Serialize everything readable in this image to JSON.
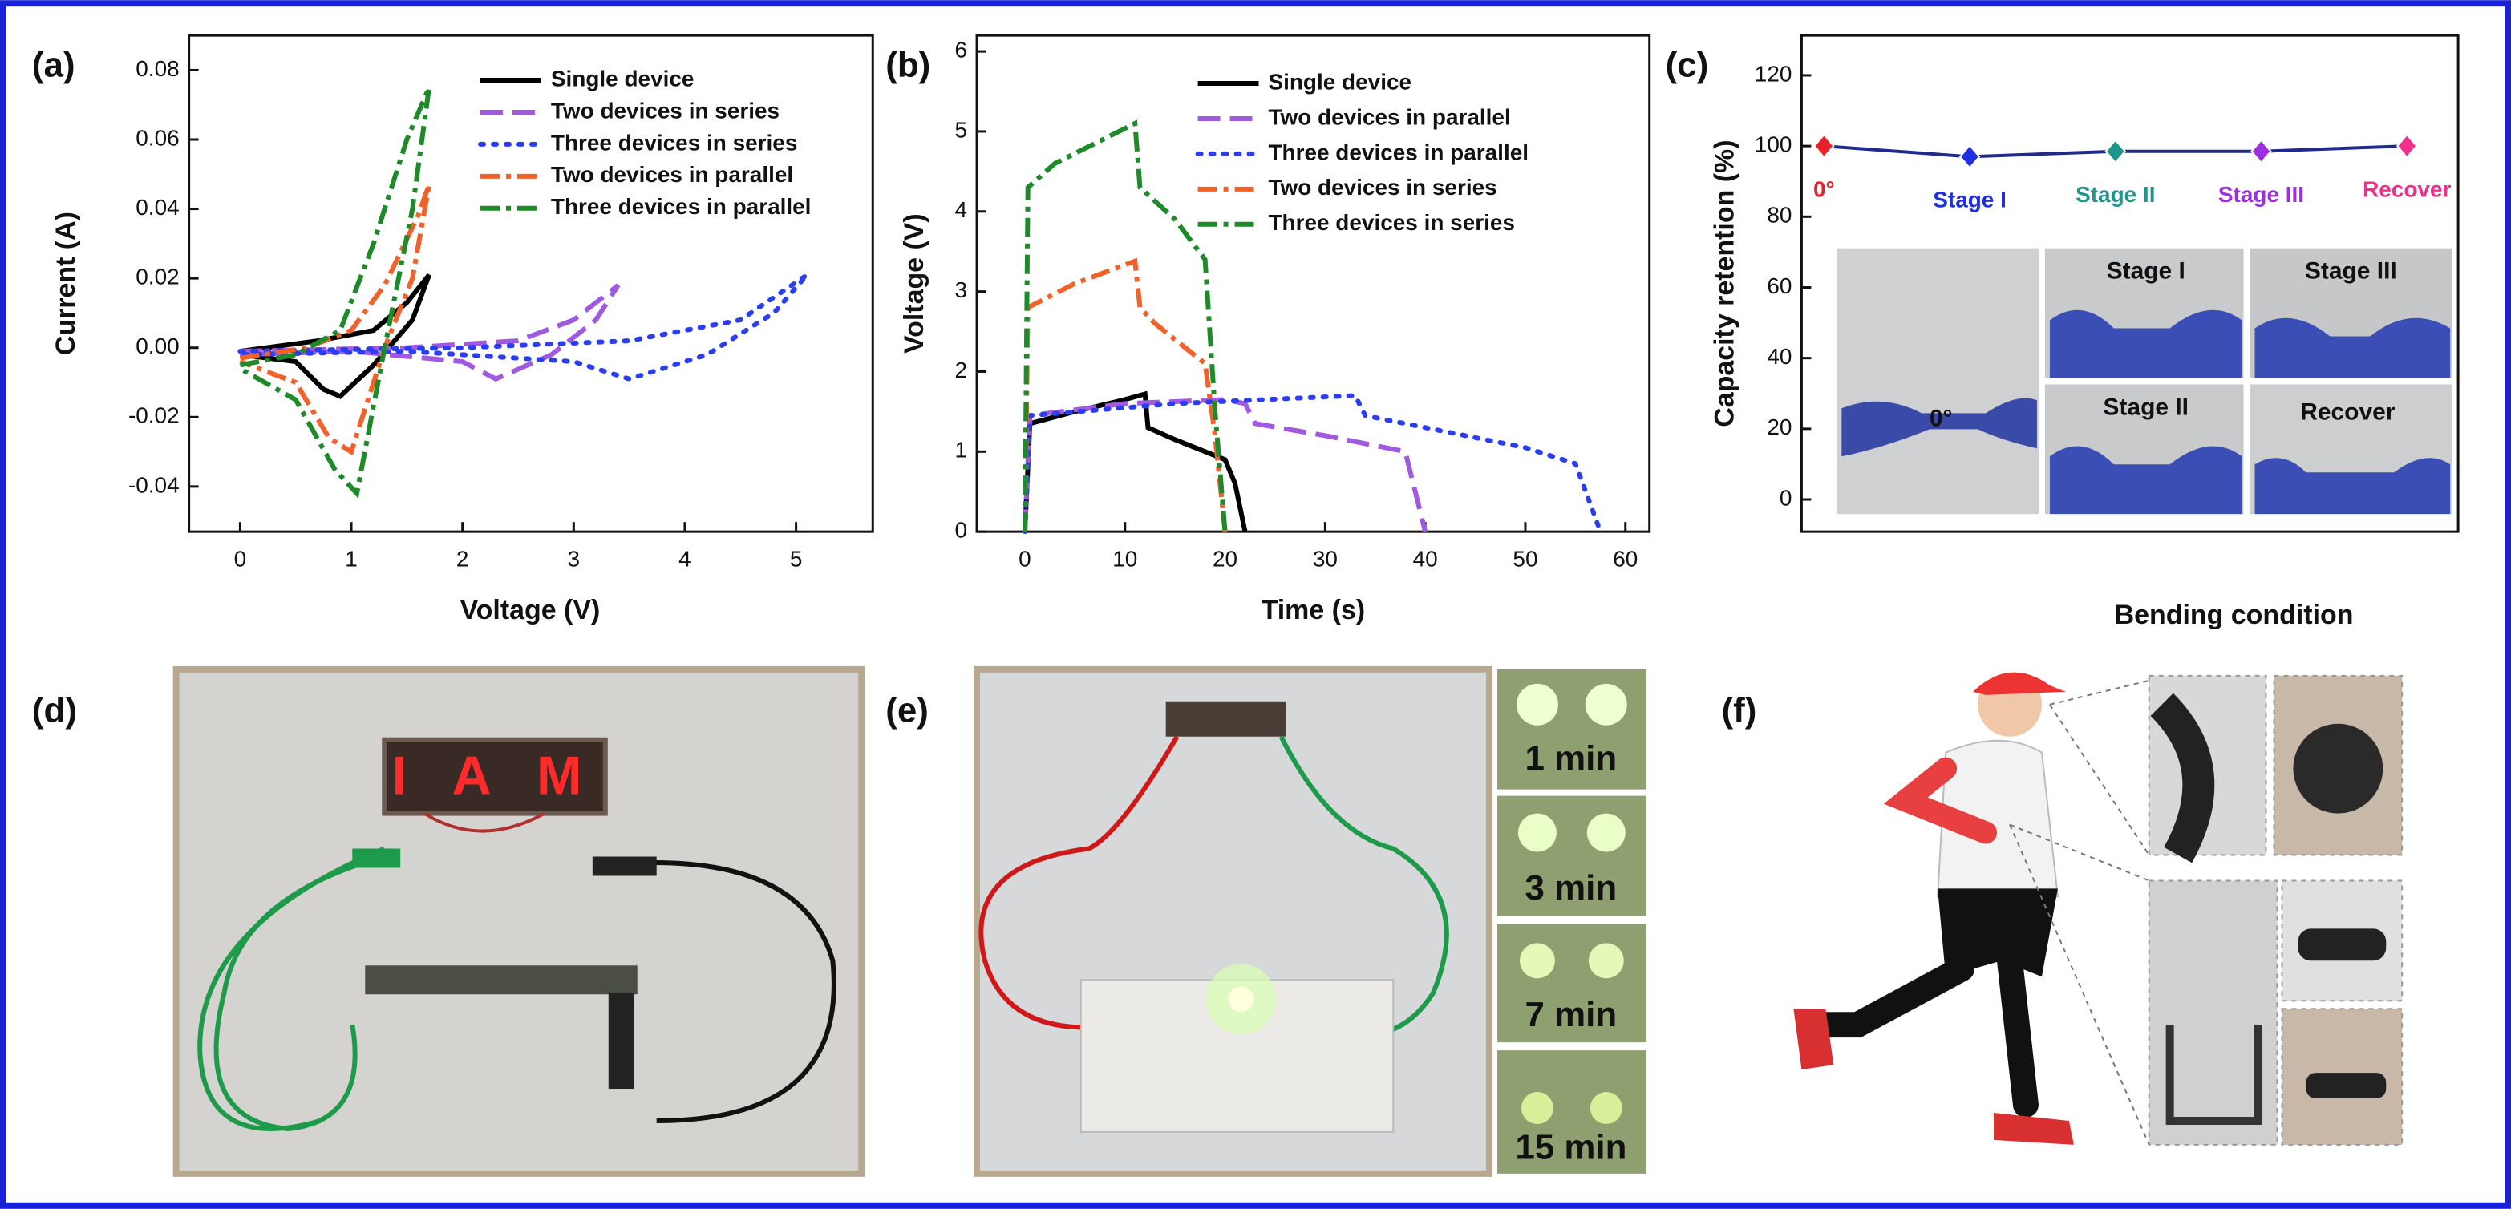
{
  "panel_labels": [
    "(a)",
    "(b)",
    "(c)",
    "(d)",
    "(e)",
    "(f)"
  ],
  "chart_data": [
    {
      "type": "line",
      "xlabel": "Voltage (V)",
      "ylabel": "Current (A)",
      "xlim": [
        -0.46,
        5.69
      ],
      "ylim": [
        -0.053,
        0.09
      ],
      "xticks": [
        0,
        1,
        2,
        3,
        4,
        5
      ],
      "yticks": [
        -0.04,
        -0.02,
        {
          "value": 0,
          "label": "0.00"
        },
        0.02,
        0.04,
        0.06,
        0.08
      ],
      "series": [
        {
          "name": "Single device",
          "color": "#000000",
          "linestyle": "solid",
          "x": [
            0,
            0.7,
            1.2,
            1.5,
            1.7,
            1.55,
            1.2,
            0.9,
            0.75,
            0.5,
            0
          ],
          "values": [
            -0.001,
            0.002,
            0.005,
            0.013,
            0.021,
            0.008,
            -0.005,
            -0.014,
            -0.012,
            -0.004,
            -0.002
          ]
        },
        {
          "name": "Two devices in series",
          "color": "#a05ae0",
          "linestyle": "dashed",
          "x": [
            0,
            1.5,
            2.5,
            3.0,
            3.4,
            3.2,
            2.8,
            2.3,
            2.0,
            1.0,
            0
          ],
          "values": [
            -0.001,
            0,
            0.002,
            0.008,
            0.018,
            0.008,
            -0.002,
            -0.009,
            -0.004,
            -0.001,
            -0.002
          ]
        },
        {
          "name": "Three devices in series",
          "color": "#2a3ef0",
          "linestyle": "dotted",
          "x": [
            0,
            2,
            3.5,
            4.5,
            5.1,
            4.8,
            4.2,
            3.5,
            3.0,
            1.5,
            0
          ],
          "values": [
            -0.001,
            0,
            0.002,
            0.008,
            0.021,
            0.01,
            -0.002,
            -0.009,
            -0.004,
            -0.001,
            -0.002
          ]
        },
        {
          "name": "Two devices in parallel",
          "color": "#f0622a",
          "linestyle": "dashdot",
          "x": [
            0,
            0.6,
            1.0,
            1.3,
            1.6,
            1.7,
            1.55,
            1.3,
            1.0,
            0.8,
            0.5,
            0
          ],
          "values": [
            -0.003,
            0,
            0.005,
            0.018,
            0.038,
            0.047,
            0.02,
            0,
            -0.03,
            -0.026,
            -0.01,
            -0.004
          ]
        },
        {
          "name": "Three devices in parallel",
          "color": "#1f8a2a",
          "linestyle": "dashdot",
          "x": [
            0,
            0.5,
            0.9,
            1.2,
            1.5,
            1.7,
            1.55,
            1.3,
            1.05,
            0.85,
            0.5,
            0
          ],
          "values": [
            -0.005,
            -0.002,
            0.005,
            0.03,
            0.06,
            0.075,
            0.04,
            0,
            -0.042,
            -0.035,
            -0.015,
            -0.006
          ]
        }
      ]
    },
    {
      "type": "line",
      "xlabel": "Time (s)",
      "ylabel": "Voltage (V)",
      "xlim": [
        -4.8,
        62.4
      ],
      "ylim": [
        0,
        6.2
      ],
      "xticks": [
        0,
        10,
        20,
        30,
        40,
        50,
        60
      ],
      "yticks": [
        0,
        1,
        2,
        3,
        4,
        5,
        6
      ],
      "series": [
        {
          "name": "Single device",
          "color": "#000000",
          "linestyle": "solid",
          "x": [
            0,
            0.5,
            5,
            10,
            12,
            12.3,
            15,
            20,
            21,
            22
          ],
          "values": [
            0,
            1.35,
            1.5,
            1.65,
            1.72,
            1.3,
            1.15,
            0.9,
            0.6,
            0
          ]
        },
        {
          "name": "Two devices in parallel",
          "color": "#a05ae0",
          "linestyle": "dashed",
          "x": [
            0,
            0.5,
            10,
            20,
            22,
            23,
            30,
            38,
            40
          ],
          "values": [
            0,
            1.45,
            1.6,
            1.65,
            1.6,
            1.35,
            1.2,
            1.0,
            0
          ]
        },
        {
          "name": "Three devices in parallel",
          "color": "#2a3ef0",
          "linestyle": "dotted",
          "x": [
            0,
            0.5,
            15,
            33,
            34,
            40,
            50,
            55,
            57.5
          ],
          "values": [
            0,
            1.45,
            1.6,
            1.7,
            1.45,
            1.3,
            1.05,
            0.85,
            0
          ]
        },
        {
          "name": "Two devices in series",
          "color": "#f0622a",
          "linestyle": "dashdot",
          "x": [
            0,
            0.3,
            5,
            11,
            11.5,
            13,
            18,
            19,
            20
          ],
          "values": [
            0,
            2.8,
            3.1,
            3.38,
            2.8,
            2.6,
            2.1,
            1.2,
            0
          ]
        },
        {
          "name": "Three devices in series",
          "color": "#1f8a2a",
          "linestyle": "dashdot",
          "x": [
            0,
            0.3,
            3,
            11,
            11.5,
            15,
            18,
            19,
            20
          ],
          "values": [
            0,
            4.3,
            4.6,
            5.1,
            4.3,
            3.9,
            3.4,
            1.5,
            0
          ]
        }
      ]
    },
    {
      "type": "line",
      "ylabel": "Capacity retention (%)",
      "xlabel": "Bending condition",
      "categories": [
        "0°",
        "Stage I",
        "Stage II",
        "Stage III",
        "Recover"
      ],
      "values": [
        100,
        97,
        98.5,
        98.5,
        100
      ],
      "color": "#1f2a8c",
      "point_colors": [
        "#e8202a",
        "#2030e0",
        "#20958a",
        "#9a30e0",
        "#f0308a"
      ],
      "ylim": [
        -9.1,
        131.3
      ],
      "yticks": [
        0,
        20,
        40,
        60,
        80,
        100,
        120
      ]
    }
  ],
  "photo_labels_c": [
    "0°",
    "Stage I",
    "Stage III",
    "Stage II",
    "Recover"
  ],
  "led_text": "I A M",
  "photo_labels_e": [
    "1 min",
    "3 min",
    "7 min",
    "15 min"
  ]
}
